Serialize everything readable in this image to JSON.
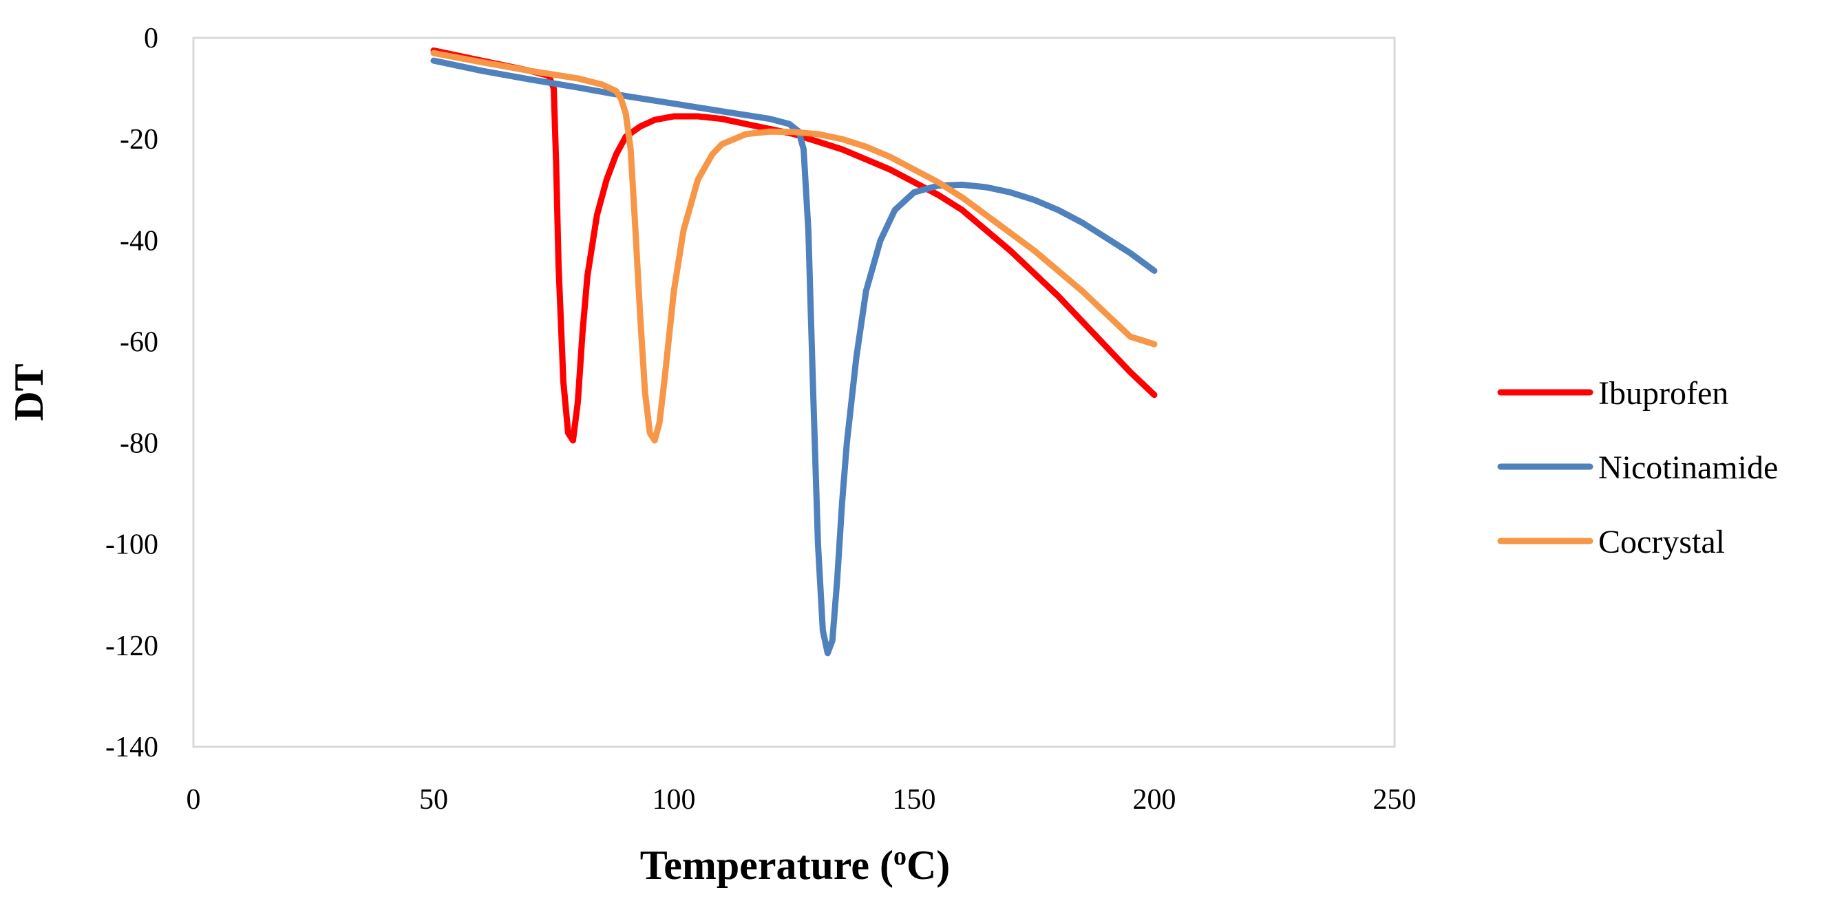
{
  "chart_data": {
    "type": "line",
    "title": "",
    "xlabel": "Temperature (",
    "xlabel_sup": "o",
    "xlabel_end": "C)",
    "ylabel": "DT",
    "xlim": [
      0,
      250
    ],
    "ylim": [
      -140,
      0
    ],
    "xticks": [
      0,
      50,
      100,
      150,
      200,
      250
    ],
    "yticks": [
      0,
      -20,
      -40,
      -60,
      -80,
      -100,
      -120,
      -140
    ],
    "grid": false,
    "legend_position": "right",
    "series": [
      {
        "name": "Ibuprofen",
        "color": "#FF0000",
        "x": [
          50,
          60,
          70,
          74,
          75,
          75.5,
          76,
          77,
          78,
          79,
          80,
          81,
          82,
          84,
          86,
          88,
          90,
          93,
          96,
          100,
          105,
          110,
          115,
          120,
          125,
          130,
          135,
          140,
          145,
          150,
          155,
          160,
          165,
          170,
          175,
          180,
          185,
          190,
          195,
          200
        ],
        "y": [
          -2.5,
          -4.5,
          -6.5,
          -7.5,
          -10,
          -25,
          -45,
          -68,
          -78,
          -79.5,
          -72,
          -58,
          -47,
          -35,
          -28,
          -23,
          -19.5,
          -17.5,
          -16.2,
          -15.5,
          -15.5,
          -16,
          -17,
          -18,
          -19,
          -20.5,
          -22,
          -24,
          -26,
          -28.5,
          -31,
          -34,
          -38,
          -42,
          -46.5,
          -51,
          -56,
          -61,
          -66,
          -70.5
        ]
      },
      {
        "name": "Nicotinamide",
        "color": "#4F81BD",
        "x": [
          50,
          60,
          70,
          80,
          90,
          100,
          110,
          120,
          124,
          126,
          127,
          128,
          129,
          130,
          131,
          132,
          133,
          134,
          135,
          136,
          138,
          140,
          143,
          146,
          150,
          155,
          160,
          165,
          170,
          175,
          180,
          185,
          190,
          195,
          200
        ],
        "y": [
          -4.5,
          -6.5,
          -8.2,
          -9.8,
          -11.5,
          -13,
          -14.5,
          -16,
          -17,
          -18.5,
          -22,
          -38,
          -70,
          -100,
          -117,
          -121.5,
          -119,
          -107,
          -92,
          -80,
          -63,
          -50,
          -40,
          -34,
          -30.5,
          -29.2,
          -29,
          -29.5,
          -30.5,
          -32,
          -34,
          -36.5,
          -39.5,
          -42.5,
          -46
        ]
      },
      {
        "name": "Cocrystal",
        "color": "#F79646",
        "x": [
          50,
          60,
          70,
          80,
          85,
          88,
          89,
          90,
          91,
          92,
          93,
          94,
          95,
          96,
          97,
          98,
          99,
          100,
          102,
          105,
          108,
          110,
          115,
          120,
          125,
          130,
          135,
          140,
          145,
          150,
          155,
          160,
          165,
          170,
          175,
          180,
          185,
          190,
          195,
          200
        ],
        "y": [
          -3,
          -4.8,
          -6.5,
          -8,
          -9.2,
          -10.5,
          -12,
          -15,
          -22,
          -38,
          -55,
          -70,
          -78,
          -79.5,
          -76,
          -68,
          -59,
          -50,
          -38,
          -28,
          -23,
          -21,
          -19,
          -18.5,
          -18.6,
          -19,
          -20,
          -21.5,
          -23.5,
          -26,
          -28.5,
          -31.5,
          -35,
          -38.5,
          -42,
          -46,
          -50,
          -54.5,
          -59,
          -60.5
        ]
      }
    ]
  }
}
